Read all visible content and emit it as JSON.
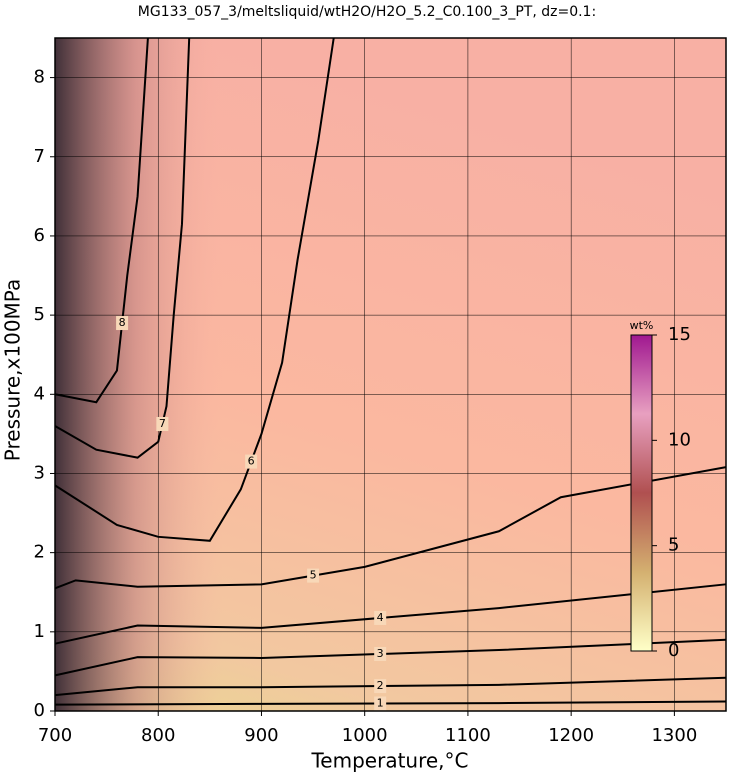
{
  "chart_data": {
    "type": "contour",
    "title": "MG133_057_3/meltsliquid/wtH2O/H2O_5.2_C0.100_3_PT, dz=0.1:",
    "xlabel": "Temperature,°C",
    "ylabel": "Pressure,x100MPa",
    "xlim": [
      700,
      1350
    ],
    "ylim": [
      0,
      8.5
    ],
    "xticks": [
      700,
      800,
      900,
      1000,
      1100,
      1200,
      1300
    ],
    "yticks": [
      0,
      1,
      2,
      3,
      4,
      5,
      6,
      7,
      8
    ],
    "grid": true,
    "contours": [
      {
        "level": 1,
        "x": [
          700,
          900,
          1130,
          1350
        ],
        "y": [
          0.08,
          0.09,
          0.1,
          0.12
        ]
      },
      {
        "level": 2,
        "x": [
          700,
          780,
          900,
          1130,
          1350
        ],
        "y": [
          0.2,
          0.3,
          0.3,
          0.33,
          0.42
        ]
      },
      {
        "level": 3,
        "x": [
          700,
          780,
          900,
          1130,
          1350
        ],
        "y": [
          0.45,
          0.68,
          0.67,
          0.77,
          0.9
        ]
      },
      {
        "level": 4,
        "x": [
          700,
          780,
          900,
          1130,
          1350
        ],
        "y": [
          0.85,
          1.08,
          1.05,
          1.3,
          1.6
        ]
      },
      {
        "level": 5,
        "x": [
          700,
          720,
          780,
          900,
          1000,
          1130,
          1190,
          1350
        ],
        "y": [
          1.55,
          1.65,
          1.57,
          1.6,
          1.82,
          2.27,
          2.7,
          3.08
        ]
      },
      {
        "level": 6,
        "x": [
          700,
          760,
          800,
          850,
          880,
          900,
          920,
          935,
          955,
          970
        ],
        "y": [
          2.85,
          2.35,
          2.2,
          2.15,
          2.8,
          3.5,
          4.4,
          5.7,
          7.2,
          8.5
        ]
      },
      {
        "level": 7,
        "x": [
          700,
          740,
          780,
          800,
          808,
          815,
          823,
          830
        ],
        "y": [
          3.6,
          3.3,
          3.2,
          3.4,
          3.85,
          5,
          6.15,
          8.5
        ]
      },
      {
        "level": 8,
        "x": [
          700,
          740,
          760,
          770,
          780,
          790
        ],
        "y": [
          4.0,
          3.9,
          4.3,
          5.5,
          6.5,
          8.5
        ]
      }
    ],
    "colorbar": {
      "label": "wt%",
      "lim": [
        0,
        15
      ],
      "ticks": [
        0,
        5,
        10,
        15
      ],
      "colors": [
        "#ffffc8",
        "#d4b070",
        "#b05050",
        "#e8a0c0",
        "#a01890"
      ]
    }
  }
}
